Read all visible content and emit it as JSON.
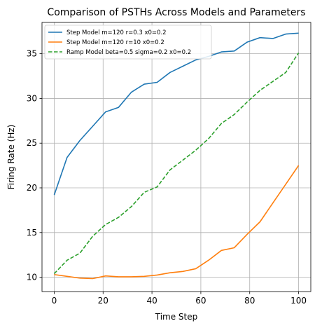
{
  "chart_data": {
    "type": "line",
    "title": "Comparison of PSTHs Across Models and Parameters",
    "xlabel": "Time Step",
    "ylabel": "Firing Rate (Hz)",
    "xlim": [
      -5,
      105
    ],
    "ylim": [
      8.4,
      38.5
    ],
    "xticks": [
      0,
      20,
      40,
      60,
      80,
      100
    ],
    "yticks": [
      10,
      15,
      20,
      25,
      30,
      35
    ],
    "grid": true,
    "legend_position": "top-left",
    "x": [
      0,
      5.26,
      10.53,
      15.79,
      21.05,
      26.32,
      31.58,
      36.84,
      42.11,
      47.37,
      52.63,
      57.89,
      63.16,
      68.42,
      73.68,
      78.95,
      84.21,
      89.47,
      94.74,
      100
    ],
    "series": [
      {
        "name": "Step Model m=120 r=0.3 x0=0.2",
        "color": "#1f77b4",
        "dash": "solid",
        "values": [
          19.2,
          23.4,
          25.3,
          26.9,
          28.5,
          29.0,
          30.7,
          31.6,
          31.8,
          32.9,
          33.6,
          34.3,
          34.7,
          35.2,
          35.3,
          36.3,
          36.8,
          36.7,
          37.2,
          37.3
        ]
      },
      {
        "name": "Step Model m=120 r=10 x0=0.2",
        "color": "#ff7f0e",
        "dash": "solid",
        "values": [
          10.3,
          10.1,
          9.9,
          9.85,
          10.15,
          10.05,
          10.05,
          10.1,
          10.25,
          10.5,
          10.65,
          10.95,
          11.9,
          13.0,
          13.3,
          14.8,
          16.2,
          18.3,
          20.4,
          22.5
        ]
      },
      {
        "name": "Ramp Model beta=0.5 sigma=0.2 x0=0.2",
        "color": "#2ca02c",
        "dash": "dashed",
        "values": [
          10.4,
          11.9,
          12.7,
          14.6,
          15.9,
          16.7,
          17.9,
          19.5,
          20.1,
          22.0,
          23.1,
          24.2,
          25.5,
          27.2,
          28.2,
          29.6,
          30.9,
          31.9,
          32.9,
          35.1
        ]
      }
    ]
  }
}
